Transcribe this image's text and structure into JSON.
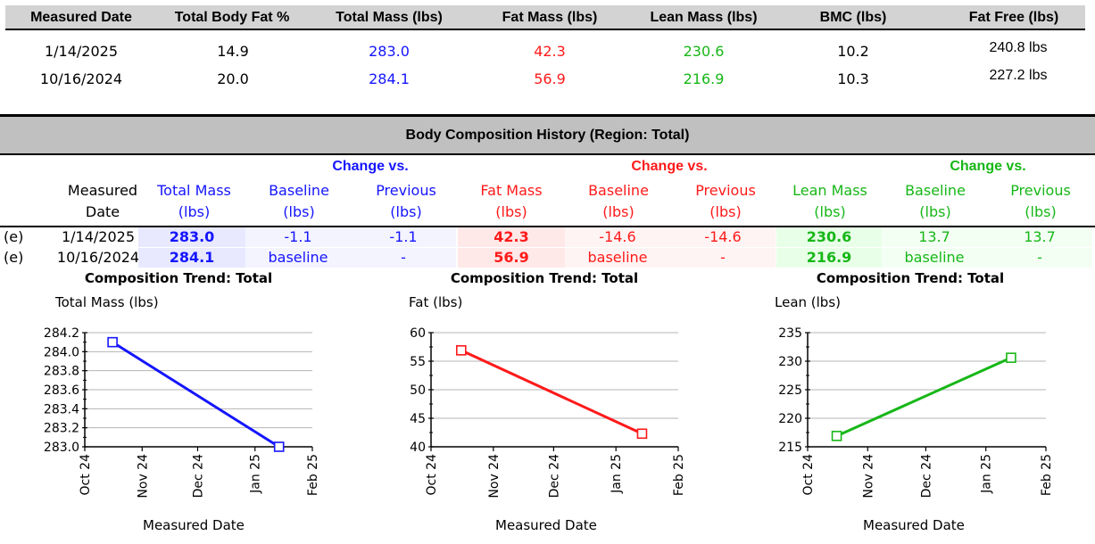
{
  "summary": {
    "headers": [
      "Measured Date",
      "Total Body Fat %",
      "Total Mass (lbs)",
      "Fat Mass (lbs)",
      "Lean Mass (lbs)",
      "BMC (lbs)",
      "Fat Free (lbs)"
    ],
    "rows": [
      {
        "date": "1/14/2025",
        "body_fat": "14.9",
        "total_mass": "283.0",
        "fat_mass": "42.3",
        "lean_mass": "230.6",
        "bmc": "10.2",
        "fat_free": "240.8 lbs"
      },
      {
        "date": "10/16/2024",
        "body_fat": "20.0",
        "total_mass": "284.1",
        "fat_mass": "56.9",
        "lean_mass": "216.9",
        "bmc": "10.3",
        "fat_free": "227.2 lbs"
      }
    ]
  },
  "history": {
    "title": "Body Composition History (Region: Total)",
    "change_vs": "Change vs.",
    "columns": {
      "measured_line1": "Measured",
      "measured_line2": "Date",
      "total_mass_line1": "Total Mass",
      "total_mass_line2": "(lbs)",
      "baseline_line1": "Baseline",
      "baseline_line2": "(lbs)",
      "previous_line1": "Previous",
      "previous_line2": "(lbs)",
      "fat_mass_line1": "Fat Mass",
      "fat_mass_line2": "(lbs)",
      "lean_mass_line1": "Lean Mass",
      "lean_mass_line2": "(lbs)"
    },
    "rows": [
      {
        "flag": "(e)",
        "date": "1/14/2025",
        "total_mass": "283.0",
        "tm_baseline": "-1.1",
        "tm_previous": "-1.1",
        "fat_mass": "42.3",
        "fm_baseline": "-14.6",
        "fm_previous": "-14.6",
        "lean_mass": "230.6",
        "lm_baseline": "13.7",
        "lm_previous": "13.7"
      },
      {
        "flag": "(e)",
        "date": "10/16/2024",
        "total_mass": "284.1",
        "tm_baseline": "baseline",
        "tm_previous": "-",
        "fat_mass": "56.9",
        "fm_baseline": "baseline",
        "fm_previous": "-",
        "lean_mass": "216.9",
        "lm_baseline": "baseline",
        "lm_previous": "-"
      }
    ]
  },
  "colors": {
    "blue": "#1515ff",
    "red": "#ff1a1a",
    "green": "#17b717"
  },
  "chart_data": [
    {
      "type": "line",
      "title": "Composition Trend: Total",
      "ylabel": "Total Mass (lbs)",
      "xlabel": "Measured Date",
      "color": "#1515ff",
      "x_ticks": [
        "Oct 24",
        "Nov 24",
        "Dec 24",
        "Jan 25",
        "Feb 25"
      ],
      "x_tick_days": [
        0,
        31,
        61,
        92,
        123
      ],
      "y_ticks": [
        "283.0",
        "283.2",
        "283.4",
        "283.6",
        "283.8",
        "284.0",
        "284.2"
      ],
      "ylim": [
        283.0,
        284.2
      ],
      "grid": true,
      "points": [
        {
          "date": "2024-10-16",
          "day": 15,
          "y": 284.1
        },
        {
          "date": "2025-01-14",
          "day": 105,
          "y": 283.0
        }
      ]
    },
    {
      "type": "line",
      "title": "Composition Trend: Total",
      "ylabel": "Fat (lbs)",
      "xlabel": "Measured Date",
      "color": "#ff1a1a",
      "x_ticks": [
        "Oct 24",
        "Nov 24",
        "Dec 24",
        "Jan 25",
        "Feb 25"
      ],
      "x_tick_days": [
        0,
        31,
        61,
        92,
        123
      ],
      "y_ticks": [
        "40",
        "45",
        "50",
        "55",
        "60"
      ],
      "ylim": [
        40,
        60
      ],
      "grid": true,
      "points": [
        {
          "date": "2024-10-16",
          "day": 15,
          "y": 56.9
        },
        {
          "date": "2025-01-14",
          "day": 105,
          "y": 42.3
        }
      ]
    },
    {
      "type": "line",
      "title": "Composition Trend: Total",
      "ylabel": "Lean (lbs)",
      "xlabel": "Measured Date",
      "color": "#17b717",
      "x_ticks": [
        "Oct 24",
        "Nov 24",
        "Dec 24",
        "Jan 25",
        "Feb 25"
      ],
      "x_tick_days": [
        0,
        31,
        61,
        92,
        123
      ],
      "y_ticks": [
        "215",
        "220",
        "225",
        "230",
        "235"
      ],
      "ylim": [
        215,
        235
      ],
      "grid": true,
      "points": [
        {
          "date": "2024-10-16",
          "day": 15,
          "y": 216.9
        },
        {
          "date": "2025-01-14",
          "day": 105,
          "y": 230.6
        }
      ]
    }
  ]
}
